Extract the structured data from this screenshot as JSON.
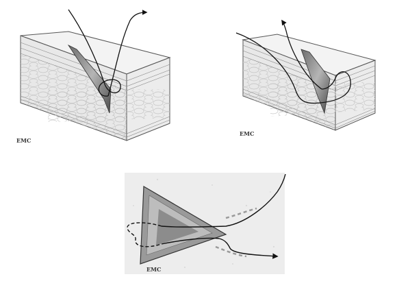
{
  "figure": {
    "panels": [
      {
        "id": "top-left",
        "signature": "EMC",
        "depicts": "skin-block-cross-section"
      },
      {
        "id": "top-right",
        "signature": "EMC",
        "depicts": "skin-block-cross-section"
      },
      {
        "id": "bottom",
        "signature": "EMC",
        "depicts": "triangular-wound-top-view"
      }
    ]
  }
}
